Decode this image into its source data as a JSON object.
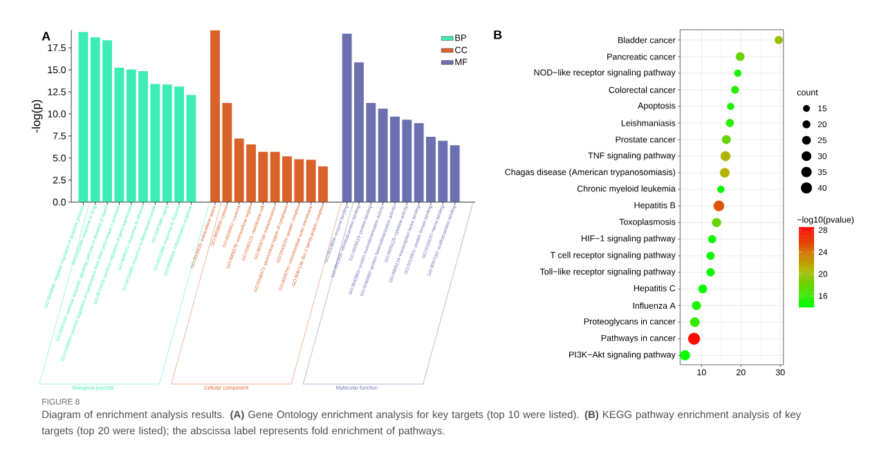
{
  "chart_data": [
    {
      "type": "bar",
      "ylabel": "-log(p)",
      "legend": "top right",
      "categories": [
        "GO:0043066~negative regulation of apoptotic process",
        "GO:0042493~response to drug",
        "GO:0097192~extrinsic apoptotic signaling pathway in absence of ligand",
        "GO:0045944~positive regulation of transcription from RNA polymerase II promoter",
        "GO:0010628~positive regulation of gene expression",
        "GO:0045471~response to ethanol",
        "GO:0032496~response to lipopolysaccharide",
        "GO:0007568~aging",
        "GO:0001666~response to hypoxia",
        "GO:0006954~inflammatory response",
        "GO:0005615~extracellular space",
        "GO:0005829~cytosol",
        "GO:0005901~caveola",
        "GO:0005576~extracellular region",
        "GO:0045121~membrane raft",
        "GO:0005739~mitochondrion",
        "GO:0048471~perinuclear region of cytoplasm",
        "GO:0043234~protein complex",
        "GO:0005741~mitochondrial outer membrane",
        "GO:0097136~Bcl-2 family protein complex",
        "GO:0019899~enzyme binding",
        "GO:0042802~identical protein binding",
        "GO:0005515~protein binding",
        "GO:0042803~protein homodimerization activity",
        "GO:0046982~protein heterodimerization activity",
        "GO:0005125~cytokine activity",
        "GO:0008134~transcription factor binding",
        "GO:0019901~protein kinase binding",
        "GO:0020037~heme binding",
        "GO:0097110~scaffold protein binding"
      ],
      "series": [
        {
          "name": "BP",
          "color": "#3dedb5",
          "values": [
            19.3,
            18.7,
            18.35,
            15.25,
            15.05,
            14.85,
            13.4,
            13.35,
            13.1,
            12.15,
            null,
            null,
            null,
            null,
            null,
            null,
            null,
            null,
            null,
            null,
            null,
            null,
            null,
            null,
            null,
            null,
            null,
            null,
            null,
            null
          ]
        },
        {
          "name": "CC",
          "color": "#d9622b",
          "values": [
            null,
            null,
            null,
            null,
            null,
            null,
            null,
            null,
            null,
            null,
            19.5,
            11.25,
            7.2,
            6.55,
            5.7,
            5.7,
            5.2,
            4.85,
            4.8,
            4.05,
            null,
            null,
            null,
            null,
            null,
            null,
            null,
            null,
            null,
            null
          ]
        },
        {
          "name": "MF",
          "color": "#6b70b0",
          "values": [
            null,
            null,
            null,
            null,
            null,
            null,
            null,
            null,
            null,
            null,
            null,
            null,
            null,
            null,
            null,
            null,
            null,
            null,
            null,
            null,
            19.1,
            15.85,
            11.25,
            10.6,
            9.7,
            9.35,
            8.95,
            7.4,
            6.95,
            6.45
          ]
        }
      ],
      "ylim": [
        0,
        19.5
      ],
      "yticks": [
        {
          "value": 0,
          "label": "0.0"
        },
        2.5,
        {
          "value": 5,
          "label": "5.0"
        },
        7.5,
        {
          "value": 10,
          "label": "10.0"
        },
        12.5,
        {
          "value": 15,
          "label": "15.0"
        },
        17.5
      ],
      "annotations": [
        "A",
        "Biological process",
        "Cellular component",
        "Molecular function",
        "FIGURE 8",
        "Diagram of enrichment analysis results. **(A)** Gene Ontology enrichment analysis for key targets (top 10 were listed). **(B)** KEGG pathway enrichment analysis of key targets (top 20 were listed); the abscissa label represents fold enrichment of pathways."
      ]
    },
    {
      "type": "bubble",
      "orientation": "horizontal",
      "grid": true,
      "categories": [
        "Bladder cancer",
        "Pancreatic cancer",
        "NOD−like receptor signaling pathway",
        "Colorectal cancer",
        "Apoptosis",
        "Leishmaniasis",
        "Prostate cancer",
        "TNF signaling pathway",
        "Chagas disease (American trypanosomiasis)",
        "Chronic myeloid leukemia",
        "Hepatitis B",
        "Toxoplasmosis",
        "HIF−1 signaling pathway",
        "T cell receptor signaling pathway",
        "Toll−like receptor signaling pathway",
        "Hepatitis C",
        "Influenza A",
        "Proteoglycans in cancer",
        "Pathways in cancer",
        "PI3K−Akt signaling pathway"
      ],
      "values": [
        29.6,
        19.8,
        19.2,
        18.5,
        17.4,
        17.2,
        16.3,
        16.1,
        15.9,
        14.9,
        14.4,
        13.8,
        12.7,
        12.3,
        12.3,
        10.3,
        8.7,
        8.3,
        8.1,
        5.8
      ],
      "sizes": [
        20,
        23,
        16,
        19,
        16,
        20,
        24,
        30,
        29,
        16,
        35,
        26,
        20,
        20,
        21,
        24,
        25,
        29,
        44,
        32
      ],
      "cvalues": [
        20,
        18,
        15,
        15.5,
        15,
        15.5,
        18,
        21,
        21,
        14.2,
        25,
        18,
        14.5,
        14.5,
        14.5,
        14.2,
        15,
        16,
        28,
        14.2
      ],
      "xlim": [
        4.55,
        30.8
      ],
      "xticks": [
        10,
        20,
        30
      ],
      "legend_title": "count",
      "size_legend": [
        15,
        20,
        25,
        30,
        35,
        40
      ],
      "clabel": "−log10(pvalue)",
      "clim": [
        13.9,
        28.5
      ],
      "cticks": [
        16,
        20,
        24,
        28
      ],
      "annotations": [
        "B"
      ]
    }
  ]
}
